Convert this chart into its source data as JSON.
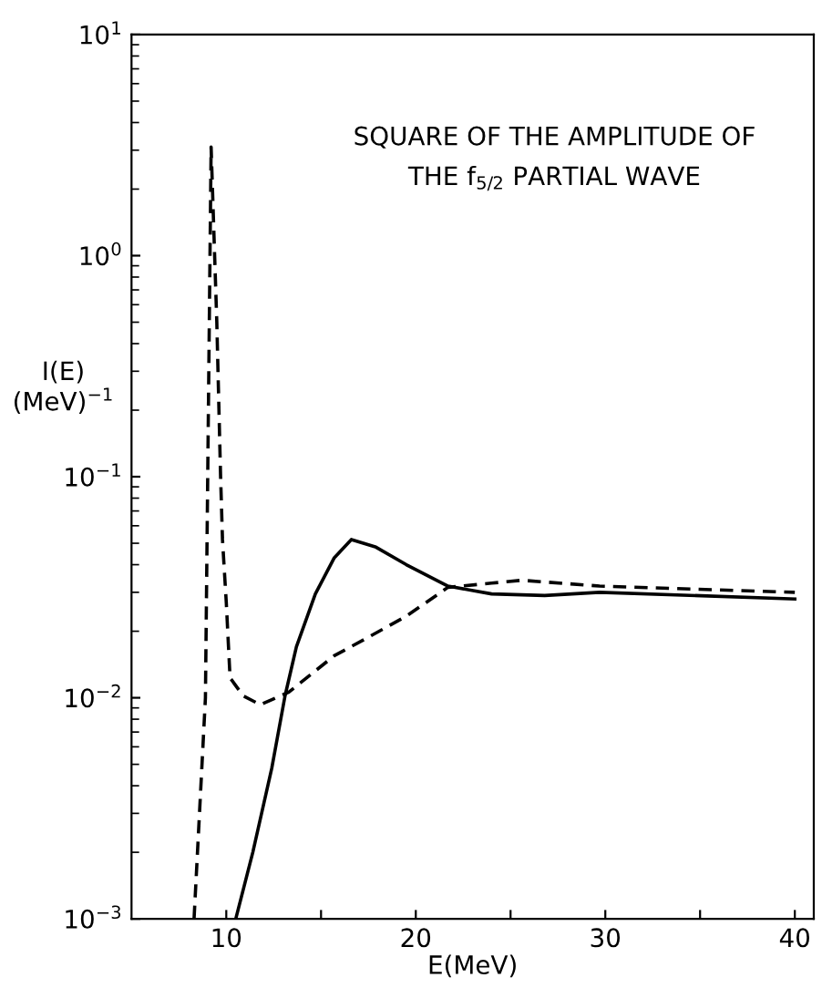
{
  "chart_data": {
    "type": "line",
    "title": "SQUARE OF THE AMPLITUDE OF\nTHE f$_{5/2}$ PARTIAL WAVE",
    "xlabel": "E(MeV)",
    "ylabel": "I(E)\n(MeV)$^{−1}$",
    "log": "y",
    "xlim": [
      5,
      41
    ],
    "ylim": [
      0.001,
      10
    ],
    "xticks": [
      10,
      {
        "value": 15,
        "label": null
      },
      20,
      {
        "value": 25,
        "label": null
      },
      30,
      {
        "value": 35,
        "label": null
      },
      40
    ],
    "yticks": [
      {
        "value": 0.001,
        "label": "10$^{−3}$"
      },
      {
        "value": 0.01,
        "label": "10$^{−2}$"
      },
      {
        "value": 0.1,
        "label": "10$^{−1}$"
      },
      {
        "value": 1,
        "label": "10$^{0}$"
      },
      {
        "value": 10,
        "label": "10$^{1}$"
      }
    ],
    "grid": false,
    "legend": false,
    "marker": "none",
    "series": [
      {
        "color": "#000000",
        "line_style": "dashed",
        "x": [
          8.3,
          8.9,
          9.2,
          9.5,
          9.7,
          9.8,
          10.0,
          10.2,
          10.9,
          11.8,
          13.3,
          15.7,
          17.6,
          19.5,
          21.7,
          24,
          25.6,
          29.7,
          40
        ],
        "values": [
          0.001,
          0.01,
          3.1,
          0.5,
          0.1,
          0.052,
          0.027,
          0.0123,
          0.0102,
          0.0093,
          0.0106,
          0.0155,
          0.019,
          0.0234,
          0.0316,
          0.033,
          0.034,
          0.032,
          0.03
        ]
      },
      {
        "color": "#000000",
        "line_style": "solid",
        "x": [
          10.5,
          11.4,
          12.4,
          13.1,
          13.7,
          14.7,
          15.7,
          16.6,
          17.9,
          19.5,
          21.7,
          24,
          26.8,
          29.7,
          40
        ],
        "values": [
          0.001,
          0.002,
          0.0048,
          0.0102,
          0.017,
          0.0295,
          0.043,
          0.052,
          0.048,
          0.04,
          0.032,
          0.0295,
          0.029,
          0.03,
          0.028
        ]
      }
    ]
  }
}
